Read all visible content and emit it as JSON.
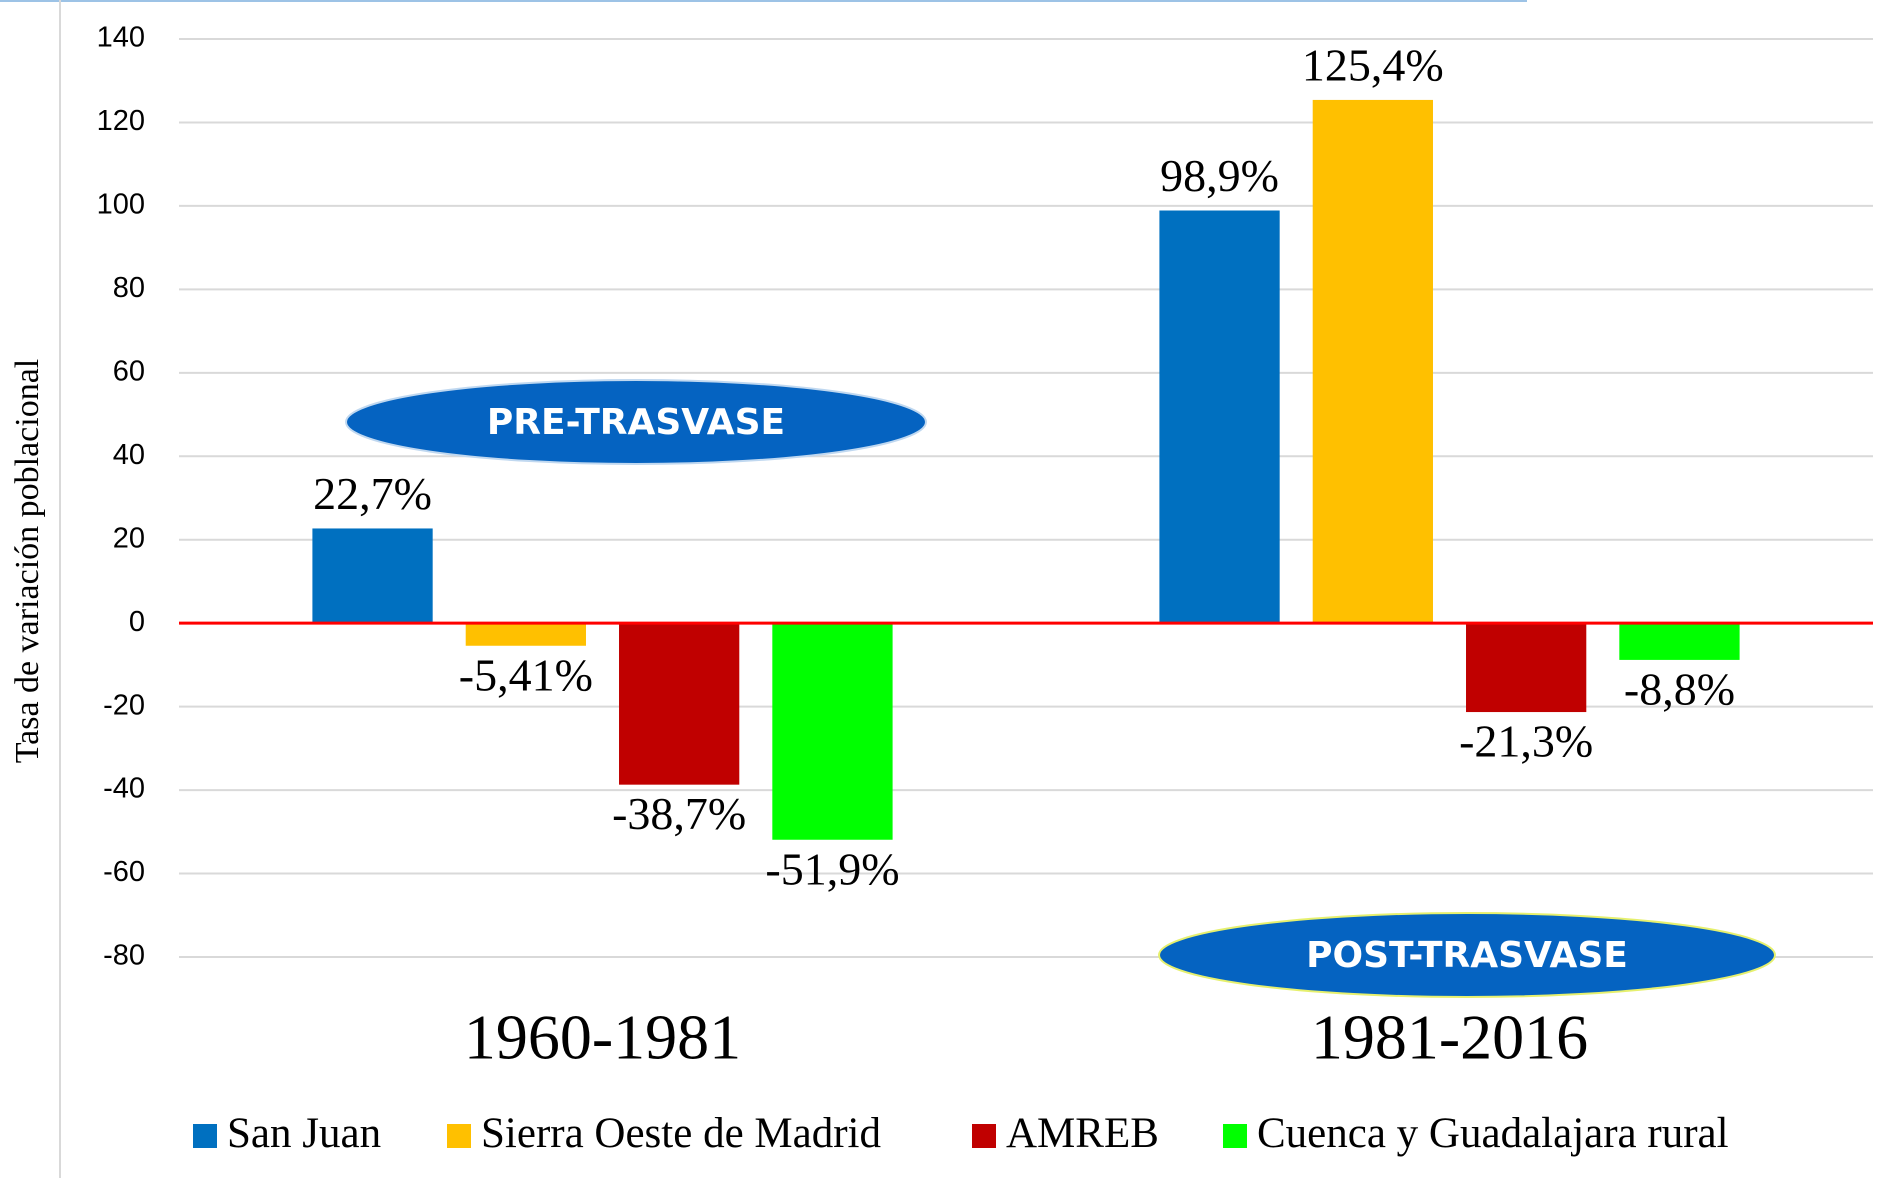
{
  "chart_data": {
    "type": "bar",
    "y_label": "Tasa de variación poblacional",
    "categories": [
      "1960-1981",
      "1981-2016"
    ],
    "series": [
      {
        "name": "San Juan",
        "color": "#0070c0",
        "values": [
          22.7,
          98.9
        ],
        "value_labels": [
          "22,7%",
          "98,9%"
        ]
      },
      {
        "name": "Sierra Oeste de Madrid",
        "color": "#ffc000",
        "values": [
          -5.41,
          125.4
        ],
        "value_labels": [
          "-5,41%",
          "125,4%"
        ]
      },
      {
        "name": "AMREB",
        "color": "#c00000",
        "values": [
          -38.7,
          -21.3
        ],
        "value_labels": [
          "-38,7%",
          "-21,3%"
        ]
      },
      {
        "name": "Cuenca y Guadalajara rural",
        "color": "#00ff00",
        "values": [
          -51.9,
          -8.8
        ],
        "value_labels": [
          "-51,9%",
          "-8,8%"
        ]
      }
    ],
    "ylim": [
      -80,
      140
    ],
    "yticks": [
      -80,
      -60,
      -40,
      -20,
      0,
      20,
      40,
      60,
      80,
      100,
      120,
      140
    ],
    "grid": true,
    "annotations": [
      "PRE-TRASVASE",
      "POST-TRASVASE"
    ],
    "legend": "bottom"
  }
}
